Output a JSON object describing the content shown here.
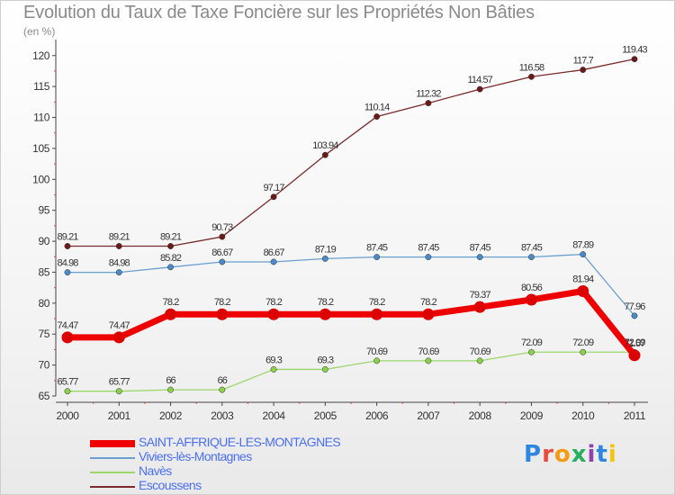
{
  "title": "Evolution du Taux de Taxe Foncière sur les Propriétés Non Bâties",
  "unit_label": "(en %)",
  "logo_text": "Proxiti",
  "chart_data": {
    "type": "line",
    "x": [
      "2000",
      "2001",
      "2002",
      "2003",
      "2004",
      "2005",
      "2006",
      "2007",
      "2008",
      "2009",
      "2010",
      "2011"
    ],
    "ylim": [
      65,
      122
    ],
    "yticks": [
      65,
      70,
      75,
      80,
      85,
      90,
      95,
      100,
      105,
      110,
      115,
      120
    ],
    "grid": false,
    "legend_position": "bottom-left",
    "series": [
      {
        "name": "Escoussens",
        "color": "#7a2a2a",
        "marker": "#6b1a1a",
        "values": [
          89.21,
          89.21,
          89.21,
          90.73,
          97.17,
          103.94,
          110.14,
          112.32,
          114.57,
          116.58,
          117.7,
          119.43
        ],
        "labels": [
          "89.21",
          "89.21",
          "89.21",
          "90.73",
          "97.17",
          "103.94",
          "110.14",
          "112.32",
          "114.57",
          "116.58",
          "117.7",
          "119.43"
        ]
      },
      {
        "name": "Viviers-lès-Montagnes",
        "color": "#6a9fd0",
        "marker": "#4a8ac8",
        "values": [
          84.98,
          84.98,
          85.82,
          86.67,
          86.67,
          87.19,
          87.45,
          87.45,
          87.45,
          87.45,
          87.89,
          77.96
        ],
        "labels": [
          "84.98",
          "84.98",
          "85.82",
          "86.67",
          "86.67",
          "87.19",
          "87.45",
          "87.45",
          "87.45",
          "87.45",
          "87.89",
          "77.96"
        ]
      },
      {
        "name": "Navès",
        "color": "#9bd66a",
        "marker": "#8ad04a",
        "values": [
          65.77,
          65.77,
          66,
          66,
          69.3,
          69.3,
          70.69,
          70.69,
          70.69,
          72.09,
          72.09,
          72.09
        ],
        "labels": [
          "65.77",
          "65.77",
          "66",
          "66",
          "69.3",
          "69.3",
          "70.69",
          "70.69",
          "70.69",
          "72.09",
          "72.09",
          "72.09"
        ]
      },
      {
        "name": "SAINT-AFFRIQUE-LES-MONTAGNES",
        "color": "#ee0000",
        "marker": "#dd0000",
        "thick": true,
        "values": [
          74.47,
          74.47,
          78.2,
          78.2,
          78.2,
          78.2,
          78.2,
          78.2,
          79.37,
          80.56,
          81.94,
          71.57
        ],
        "labels": [
          "74.47",
          "74.47",
          "78.2",
          "78.2",
          "78.2",
          "78.2",
          "78.2",
          "78.2",
          "79.37",
          "80.56",
          "81.94",
          "71.57"
        ]
      }
    ],
    "legend_order": [
      "SAINT-AFFRIQUE-LES-MONTAGNES",
      "Viviers-lès-Montagnes",
      "Navès",
      "Escoussens"
    ]
  }
}
